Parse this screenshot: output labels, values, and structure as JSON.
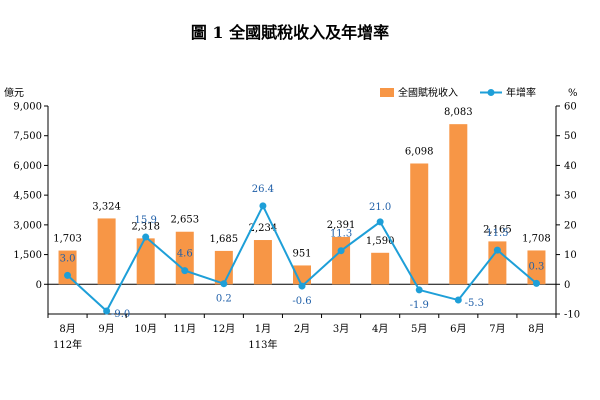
{
  "chart_data": {
    "type": "bar",
    "title": "圖 1   全國賦稅收入及年增率",
    "categories": [
      "8月",
      "9月",
      "10月",
      "11月",
      "12月",
      "1月",
      "2月",
      "3月",
      "4月",
      "5月",
      "6月",
      "7月",
      "8月"
    ],
    "year_labels": [
      {
        "index": 0,
        "label": "112年"
      },
      {
        "index": 5,
        "label": "113年"
      }
    ],
    "left_axis": {
      "unit": "億元",
      "ylim": [
        0,
        9000
      ],
      "ticks": [
        "9,000",
        "7,500",
        "6,000",
        "4,500",
        "3,000",
        "1,500",
        "0"
      ],
      "tick_values": [
        9000,
        7500,
        6000,
        4500,
        3000,
        1500,
        0
      ]
    },
    "right_axis": {
      "unit": "%",
      "ylim": [
        -10,
        60
      ],
      "ticks": [
        "60",
        "50",
        "40",
        "30",
        "20",
        "10",
        "0",
        "-10"
      ],
      "tick_values": [
        60,
        50,
        40,
        30,
        20,
        10,
        0,
        -10
      ]
    },
    "series": [
      {
        "name": "全國賦稅收入",
        "type": "bar",
        "axis": "left",
        "color": "#f79646",
        "values": [
          1703,
          3324,
          2318,
          2653,
          1685,
          2234,
          951,
          2391,
          1590,
          6098,
          8083,
          2165,
          1708
        ],
        "labels": [
          "1,703",
          "3,324",
          "2,318",
          "2,653",
          "1,685",
          "2,234",
          "951",
          "2,391",
          "1,590",
          "6,098",
          "8,083",
          "2,165",
          "1,708"
        ]
      },
      {
        "name": "年增率",
        "type": "line",
        "axis": "right",
        "color": "#1e9fd8",
        "values": [
          3.0,
          -9.0,
          15.9,
          4.6,
          0.2,
          26.4,
          -0.6,
          11.3,
          21.0,
          -1.9,
          -5.3,
          11.5,
          0.3
        ],
        "labels": [
          "3.0",
          "-9.0",
          "15.9",
          "4.6",
          "0.2",
          "26.4",
          "-0.6",
          "11.3",
          "21.0",
          "-1.9",
          "-5.3",
          "11.5",
          "0.3"
        ]
      }
    ],
    "legend_position": "top-right",
    "grid": false
  }
}
